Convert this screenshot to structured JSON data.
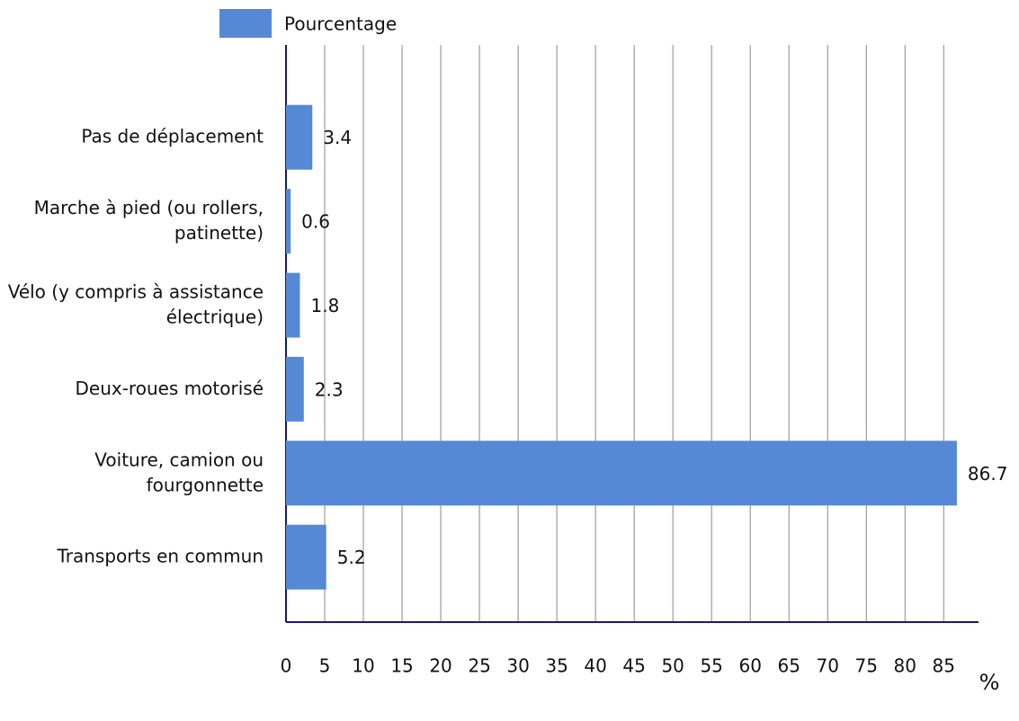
{
  "chart_data": {
    "type": "bar",
    "orientation": "horizontal",
    "categories": [
      "Pas de déplacement",
      "Marche à pied (ou rollers, patinette)",
      "Vélo (y compris à assistance électrique)",
      "Deux-roues motorisé",
      "Voiture, camion ou fourgonnette",
      "Transports en commun"
    ],
    "series": [
      {
        "name": "Pourcentage",
        "color": "#5589d6",
        "values": [
          3.4,
          0.6,
          1.8,
          2.3,
          86.7,
          5.2
        ]
      }
    ],
    "x_label": "%",
    "xlim": [
      0,
      89.5
    ],
    "xticks": [
      0,
      5,
      10,
      15,
      20,
      25,
      30,
      35,
      40,
      45,
      50,
      55,
      60,
      65,
      70,
      75,
      80,
      85
    ],
    "grid": true,
    "legend": "top"
  }
}
